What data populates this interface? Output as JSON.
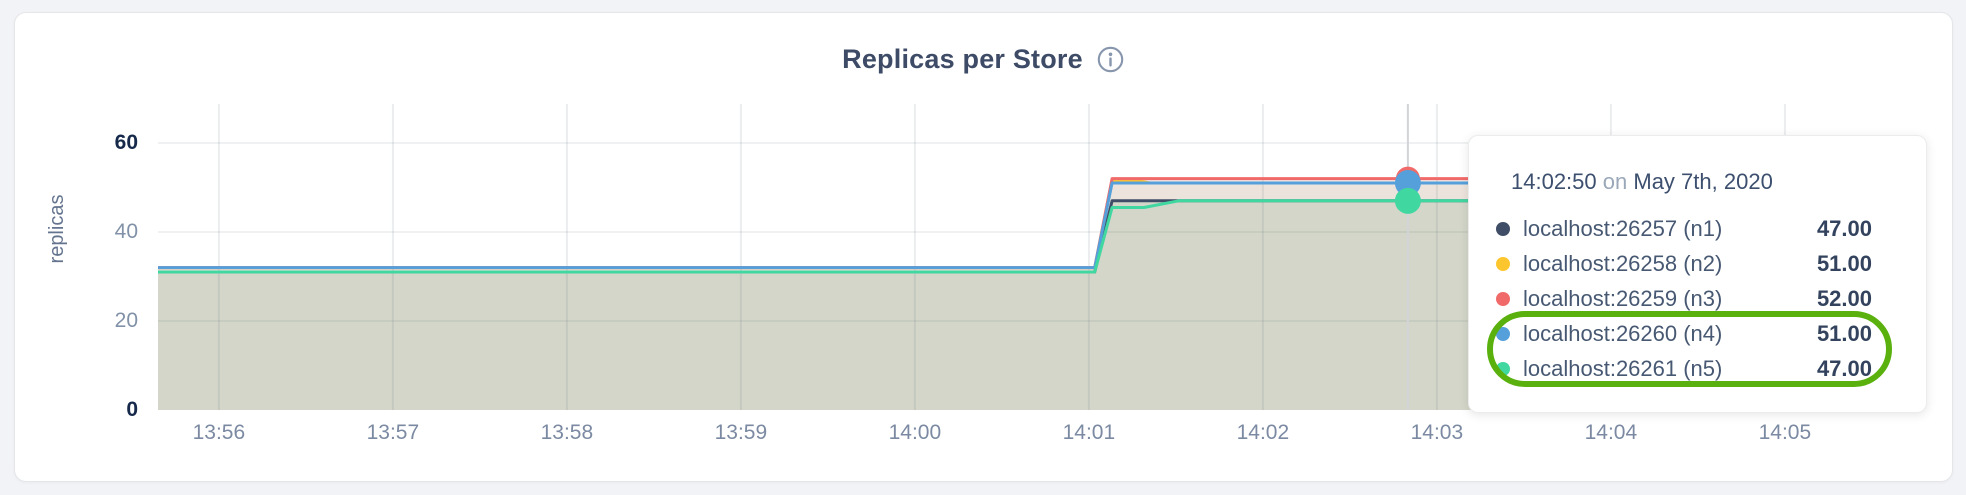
{
  "header": {
    "title": "Replicas per Store",
    "info_icon": "info-icon"
  },
  "chart_data": {
    "type": "area",
    "title": "Replicas per Store",
    "xlabel": "",
    "ylabel": "replicas",
    "ylim": [
      0,
      60
    ],
    "y_ticks": [
      0,
      20,
      40,
      60
    ],
    "x_ticks": [
      "13:56",
      "13:57",
      "13:58",
      "13:59",
      "14:00",
      "14:01",
      "14:02",
      "14:03",
      "14:04",
      "14:05"
    ],
    "x_start": "13:55:39",
    "x_end": "14:03:12",
    "grid": true,
    "legend_position": "tooltip",
    "series": [
      {
        "name": "localhost:26257 (n1)",
        "color": "#3f4e66",
        "points": [
          [
            "13:55:39",
            31
          ],
          [
            "14:01:02",
            31
          ],
          [
            "14:01:08",
            47
          ],
          [
            "14:03:12",
            47
          ]
        ]
      },
      {
        "name": "localhost:26258 (n2)",
        "color": "#fec62e",
        "points": [
          [
            "13:55:39",
            32
          ],
          [
            "14:01:02",
            32
          ],
          [
            "14:01:08",
            51.5
          ],
          [
            "14:01:17",
            51.5
          ],
          [
            "14:01:21",
            51
          ],
          [
            "14:03:12",
            51
          ]
        ]
      },
      {
        "name": "localhost:26259 (n3)",
        "color": "#f16a6a",
        "points": [
          [
            "13:55:39",
            32
          ],
          [
            "14:01:02",
            32
          ],
          [
            "14:01:08",
            52
          ],
          [
            "14:03:12",
            52
          ]
        ]
      },
      {
        "name": "localhost:26260 (n4)",
        "color": "#55a0db",
        "points": [
          [
            "13:55:39",
            32
          ],
          [
            "14:01:02",
            32
          ],
          [
            "14:01:08",
            51
          ],
          [
            "14:03:12",
            51
          ]
        ]
      },
      {
        "name": "localhost:26261 (n5)",
        "color": "#41d7a1",
        "points": [
          [
            "13:55:39",
            31
          ],
          [
            "14:01:02",
            31
          ],
          [
            "14:01:08",
            45.5
          ],
          [
            "14:01:19",
            45.5
          ],
          [
            "14:01:31",
            47
          ],
          [
            "14:03:12",
            47
          ]
        ]
      }
    ],
    "area_band_colors": {
      "lower": "#d3d6c8",
      "middle": "#ece4dc",
      "upper": "#f5e9e5"
    },
    "hover": {
      "time": "14:02:50",
      "values": [
        47,
        51,
        52,
        51,
        47
      ]
    }
  },
  "tooltip": {
    "time": "14:02:50",
    "on_word": "on",
    "date": "May 7th, 2020",
    "rows": [
      {
        "label": "localhost:26257 (n1)",
        "value": "47.00",
        "color": "#3f4e66"
      },
      {
        "label": "localhost:26258 (n2)",
        "value": "51.00",
        "color": "#fec62e"
      },
      {
        "label": "localhost:26259 (n3)",
        "value": "52.00",
        "color": "#f16a6a"
      },
      {
        "label": "localhost:26260 (n4)",
        "value": "51.00",
        "color": "#55a0db"
      },
      {
        "label": "localhost:26261 (n5)",
        "value": "47.00",
        "color": "#41d7a1"
      }
    ],
    "highlight": {
      "rows": [
        "localhost:26260 (n4)",
        "localhost:26261 (n5)"
      ],
      "color": "#5ab10d"
    }
  }
}
